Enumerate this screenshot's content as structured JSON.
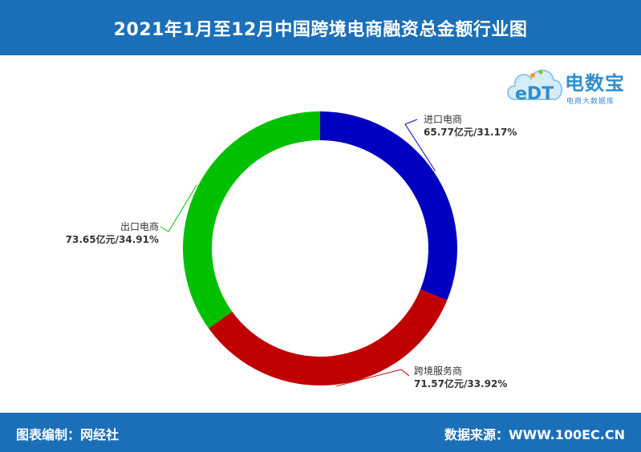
{
  "header": {
    "title": "2021年1月至12月中国跨境电商融资总金额行业图"
  },
  "footer": {
    "left": "图表编制：网经社",
    "right": "数据来源：WWW.100EC.CN"
  },
  "logo": {
    "mark": "eDT",
    "brand": "电数宝",
    "sub": "电商大数据库"
  },
  "chart_data": {
    "type": "pie",
    "donut": true,
    "slices": [
      {
        "name": "进口电商",
        "value": 65.77,
        "value_text": "65.77亿元/31.17%",
        "color": "#0000c0"
      },
      {
        "name": "跨境服务商",
        "value": 71.57,
        "value_text": "71.57亿元/33.92%",
        "color": "#c00000"
      },
      {
        "name": "出口电商",
        "value": 73.65,
        "value_text": "73.65亿元/34.91%",
        "color": "#00c000"
      }
    ]
  }
}
